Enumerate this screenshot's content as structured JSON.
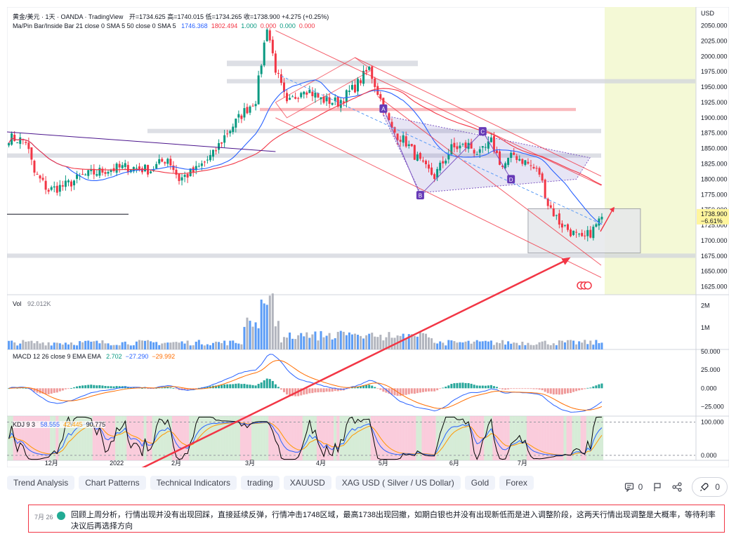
{
  "header": {
    "symbol": "黄金/美元 · 1天 · OANDA · TradingView",
    "ohlc_open": "开=1734.625",
    "ohlc_high": "高=1740.015",
    "ohlc_low": "低=1734.265",
    "ohlc_close": "收=1738.900",
    "change": "+4.275 (+0.25%)",
    "indicator_label": "Ma/Pin Bar/Inside Bar 21 close 0 SMA 5 50 close 0 SMA 5",
    "indicator_values": [
      "1746.368",
      "1802.494",
      "1.000",
      "0.000",
      "0.000",
      "0.000"
    ],
    "indicator_colors": [
      "#2962ff",
      "#f23645",
      "#089981",
      "#f23645",
      "#089981",
      "#f23645"
    ]
  },
  "colors": {
    "up": "#089981",
    "down": "#f23645",
    "ma_fast": "#2962ff",
    "ma_slow": "#f23645",
    "forecast_bg": "#f4f9d6",
    "vol_up": "#5b9cf6",
    "vol_down": "#b2b5be",
    "kdj_k": "#2962ff",
    "kdj_d": "#ff9800",
    "kdj_j": "#000000"
  },
  "chart_data": [
    {
      "type": "candlestick",
      "title": "黄金/美元 · 1天 · OANDA · TradingView",
      "currency_label": "USD",
      "y_ticks": [
        "2050.000",
        "2025.000",
        "2000.000",
        "1975.000",
        "1950.000",
        "1925.000",
        "1900.000",
        "1875.000",
        "1850.000",
        "1825.000",
        "1800.000",
        "1775.000",
        "1750.000",
        "1725.000",
        "1700.000",
        "1675.000",
        "1650.000",
        "1625.000"
      ],
      "ylim": [
        1612,
        2078
      ],
      "x_labels": [
        "12月",
        "2022",
        "2月",
        "3月",
        "4月",
        "5月",
        "6月",
        "7月"
      ],
      "last_price": "1738.900",
      "last_change_pct": "−6.61%",
      "annotations": [
        "A",
        "B",
        "C",
        "D"
      ],
      "close_keypoints": [
        {
          "t": 0,
          "v": 1868
        },
        {
          "t": 6,
          "v": 1862
        },
        {
          "t": 9,
          "v": 1810
        },
        {
          "t": 14,
          "v": 1782
        },
        {
          "t": 20,
          "v": 1790
        },
        {
          "t": 26,
          "v": 1805
        },
        {
          "t": 34,
          "v": 1815
        },
        {
          "t": 42,
          "v": 1820
        },
        {
          "t": 50,
          "v": 1815
        },
        {
          "t": 56,
          "v": 1835
        },
        {
          "t": 60,
          "v": 1800
        },
        {
          "t": 66,
          "v": 1815
        },
        {
          "t": 72,
          "v": 1840
        },
        {
          "t": 76,
          "v": 1870
        },
        {
          "t": 82,
          "v": 1905
        },
        {
          "t": 87,
          "v": 1930
        },
        {
          "t": 91,
          "v": 2050
        },
        {
          "t": 94,
          "v": 1980
        },
        {
          "t": 98,
          "v": 1920
        },
        {
          "t": 104,
          "v": 1950
        },
        {
          "t": 110,
          "v": 1930
        },
        {
          "t": 116,
          "v": 1925
        },
        {
          "t": 122,
          "v": 1950
        },
        {
          "t": 127,
          "v": 1980
        },
        {
          "t": 131,
          "v": 1930
        },
        {
          "t": 135,
          "v": 1880
        },
        {
          "t": 140,
          "v": 1860
        },
        {
          "t": 146,
          "v": 1820
        },
        {
          "t": 150,
          "v": 1805
        },
        {
          "t": 156,
          "v": 1850
        },
        {
          "t": 162,
          "v": 1855
        },
        {
          "t": 166,
          "v": 1840
        },
        {
          "t": 170,
          "v": 1860
        },
        {
          "t": 174,
          "v": 1820
        },
        {
          "t": 178,
          "v": 1840
        },
        {
          "t": 183,
          "v": 1825
        },
        {
          "t": 187,
          "v": 1810
        },
        {
          "t": 190,
          "v": 1760
        },
        {
          "t": 194,
          "v": 1730
        },
        {
          "t": 198,
          "v": 1715
        },
        {
          "t": 202,
          "v": 1700
        },
        {
          "t": 206,
          "v": 1718
        },
        {
          "t": 209,
          "v": 1739
        }
      ],
      "candle_count": 210
    },
    {
      "type": "bar",
      "title": "Vol",
      "value_label": "92.012K",
      "y_ticks": [
        "2M",
        "1M"
      ],
      "ylim": [
        0,
        2400000
      ]
    },
    {
      "type": "line",
      "title": "MACD 12 26 close 9 EMA EMA",
      "series_values": [
        "2.702",
        "−27.290",
        "−29.992"
      ],
      "series_colors": [
        "#089981",
        "#2962ff",
        "#ff6d00"
      ],
      "y_ticks": [
        "50.000",
        "25.000",
        "0.000",
        "−25.000"
      ],
      "ylim": [
        -38,
        53
      ]
    },
    {
      "type": "line",
      "title": "KDJ 9 3",
      "series_values": [
        "58.555",
        "42.445",
        "90.775"
      ],
      "series_colors": [
        "#2962ff",
        "#ff9800",
        "#131722"
      ],
      "y_ticks": [
        "100.000",
        "0.000"
      ],
      "ylim": [
        -15,
        118
      ]
    }
  ],
  "tags": [
    "Trend Analysis",
    "Chart Patterns",
    "Technical Indicators",
    "trading",
    "XAUUSD",
    "XAG USD ( Silver / US Dollar)",
    "Gold",
    "Forex"
  ],
  "actions": {
    "comments": "0",
    "boosts": "0"
  },
  "update": {
    "date": "7月 26",
    "text": "回顾上周分析，行情出现并没有出现回踩，直接延续反弹，行情冲击1748区域，最高1738出现回撤，如期白银也并没有出现新低而是进入调整阶段，这两天行情出现调整是大概率，等待利率决议后再选择方向"
  }
}
